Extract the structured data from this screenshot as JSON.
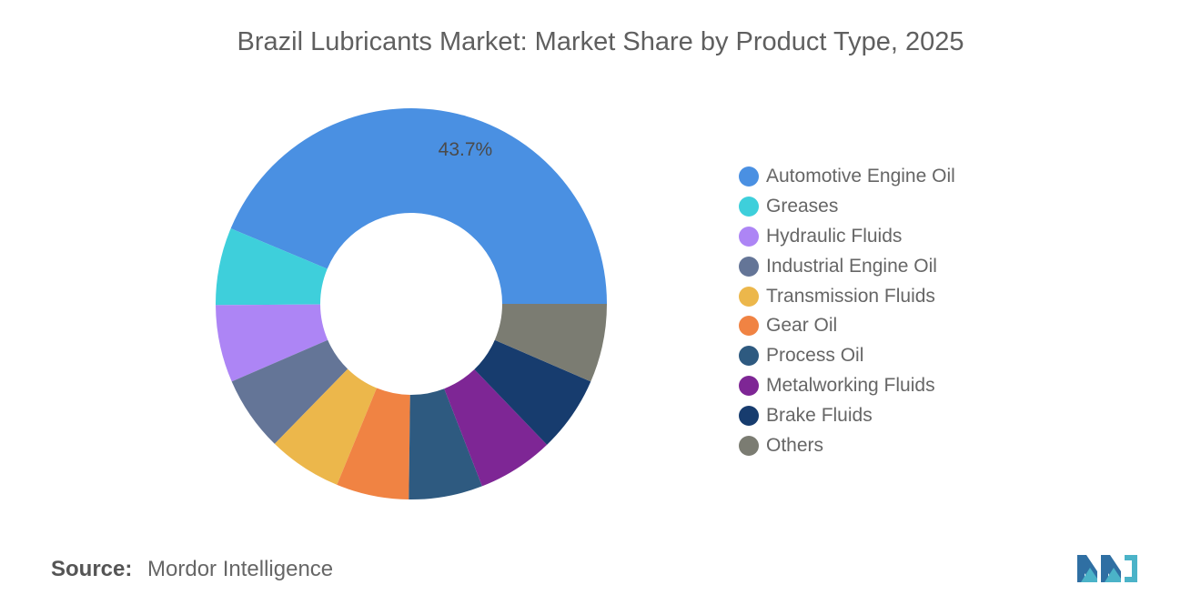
{
  "chart_data": {
    "type": "pie",
    "title": "Brazil Lubricants Market: Market Share by Product Type, 2025",
    "donut": true,
    "legend_position": "right",
    "shown_label": "43.7%",
    "categories": [
      "Automotive Engine Oil",
      "Greases",
      "Hydraulic Fluids",
      "Industrial Engine Oil",
      "Transmission Fluids",
      "Gear Oil",
      "Process Oil",
      "Metalworking Fluids",
      "Brake Fluids",
      "Others"
    ],
    "values": [
      43.7,
      6.4,
      6.4,
      6.2,
      6.1,
      6.0,
      6.1,
      6.3,
      6.3,
      6.5
    ],
    "colors": [
      "#4a90e2",
      "#3ecfdb",
      "#ad85f5",
      "#647597",
      "#ecb74b",
      "#f08343",
      "#2e5a80",
      "#7e2695",
      "#173c6e",
      "#7b7c72"
    ]
  },
  "source": {
    "label": "Source:",
    "value": "Mordor Intelligence"
  }
}
